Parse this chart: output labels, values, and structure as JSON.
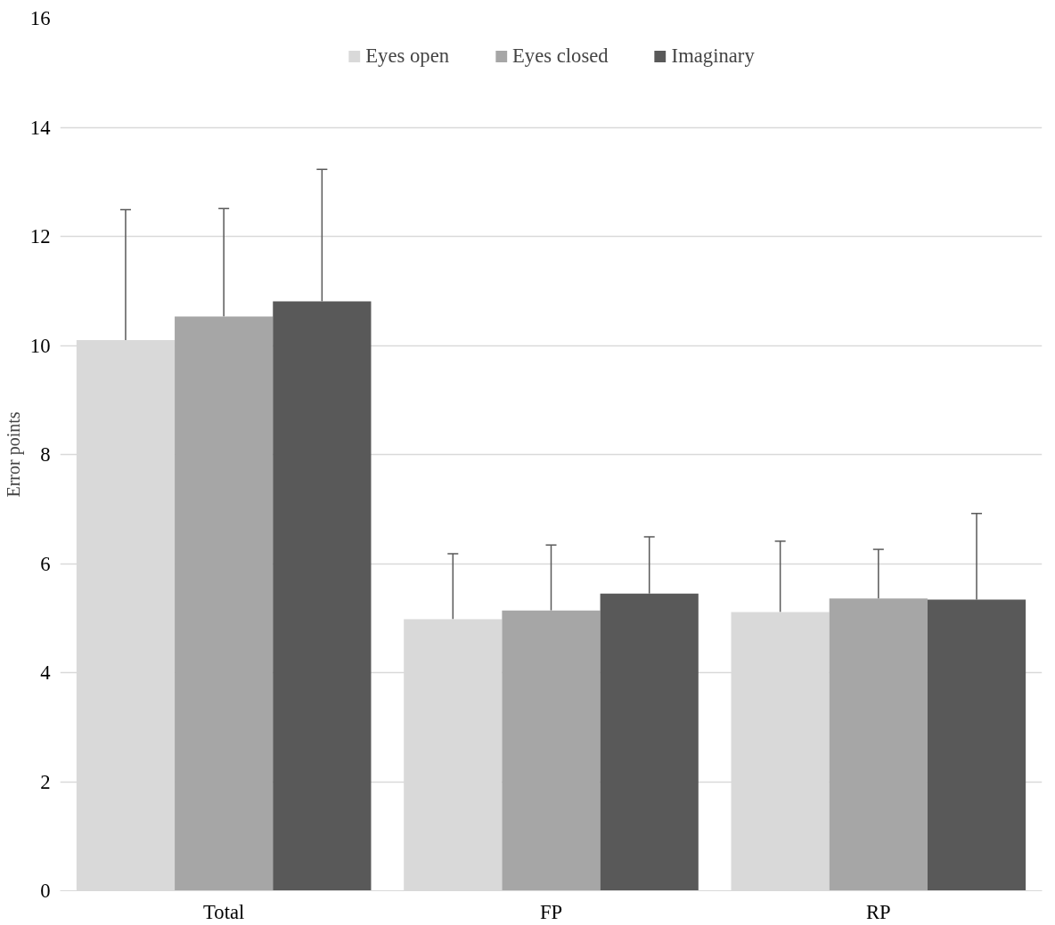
{
  "chart_data": {
    "type": "bar",
    "ylabel": "Error points",
    "categories": [
      "Total",
      "FP",
      "RP"
    ],
    "series": [
      {
        "name": "Eyes open",
        "color": "#d9d9d9",
        "values": [
          10.1,
          4.98,
          5.11
        ],
        "errors": [
          2.39,
          1.2,
          1.3
        ]
      },
      {
        "name": "Eyes closed",
        "color": "#a6a6a6",
        "values": [
          10.53,
          5.14,
          5.36
        ],
        "errors": [
          1.98,
          1.2,
          0.9
        ]
      },
      {
        "name": "Imaginary",
        "color": "#595959",
        "values": [
          10.81,
          5.45,
          5.34
        ],
        "errors": [
          2.42,
          1.04,
          1.58
        ]
      }
    ],
    "ylim": [
      0,
      16
    ],
    "yticks": [
      0,
      2,
      4,
      6,
      8,
      10,
      12,
      14,
      16
    ],
    "grid": "y",
    "legend": "top"
  }
}
